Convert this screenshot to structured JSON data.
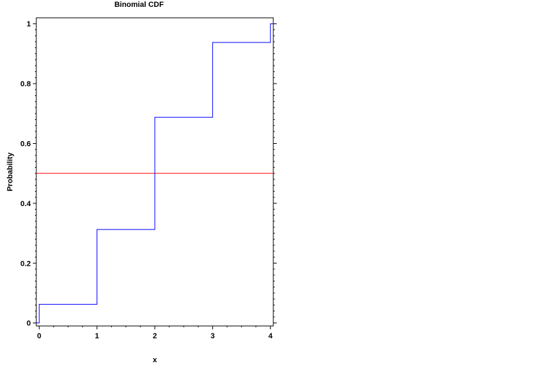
{
  "chart_data": {
    "type": "line",
    "title": "Binomial CDF",
    "xlabel": "x",
    "ylabel": "Probability",
    "xlim": [
      -0.05,
      4.05
    ],
    "ylim": [
      -0.01,
      1.02
    ],
    "x_ticks": [
      0,
      1,
      2,
      3,
      4
    ],
    "y_ticks": [
      0,
      0.2,
      0.4,
      0.6,
      0.8,
      1
    ],
    "x_tick_labels": [
      "0",
      "1",
      "2",
      "3",
      "4"
    ],
    "y_tick_labels": [
      "0",
      "0.2",
      "0.4",
      "0.6",
      "0.8",
      "1"
    ],
    "grid": false,
    "series": [
      {
        "color": "#0000ff",
        "step": "post",
        "x": [
          -0.05,
          0,
          1,
          2,
          3,
          4,
          4.05
        ],
        "y": [
          0,
          0.0625,
          0.3125,
          0.6875,
          0.9375,
          1,
          1
        ]
      }
    ],
    "reference_lines": [
      {
        "orientation": "horizontal",
        "y": 0.5,
        "color": "#ff0000"
      }
    ]
  }
}
